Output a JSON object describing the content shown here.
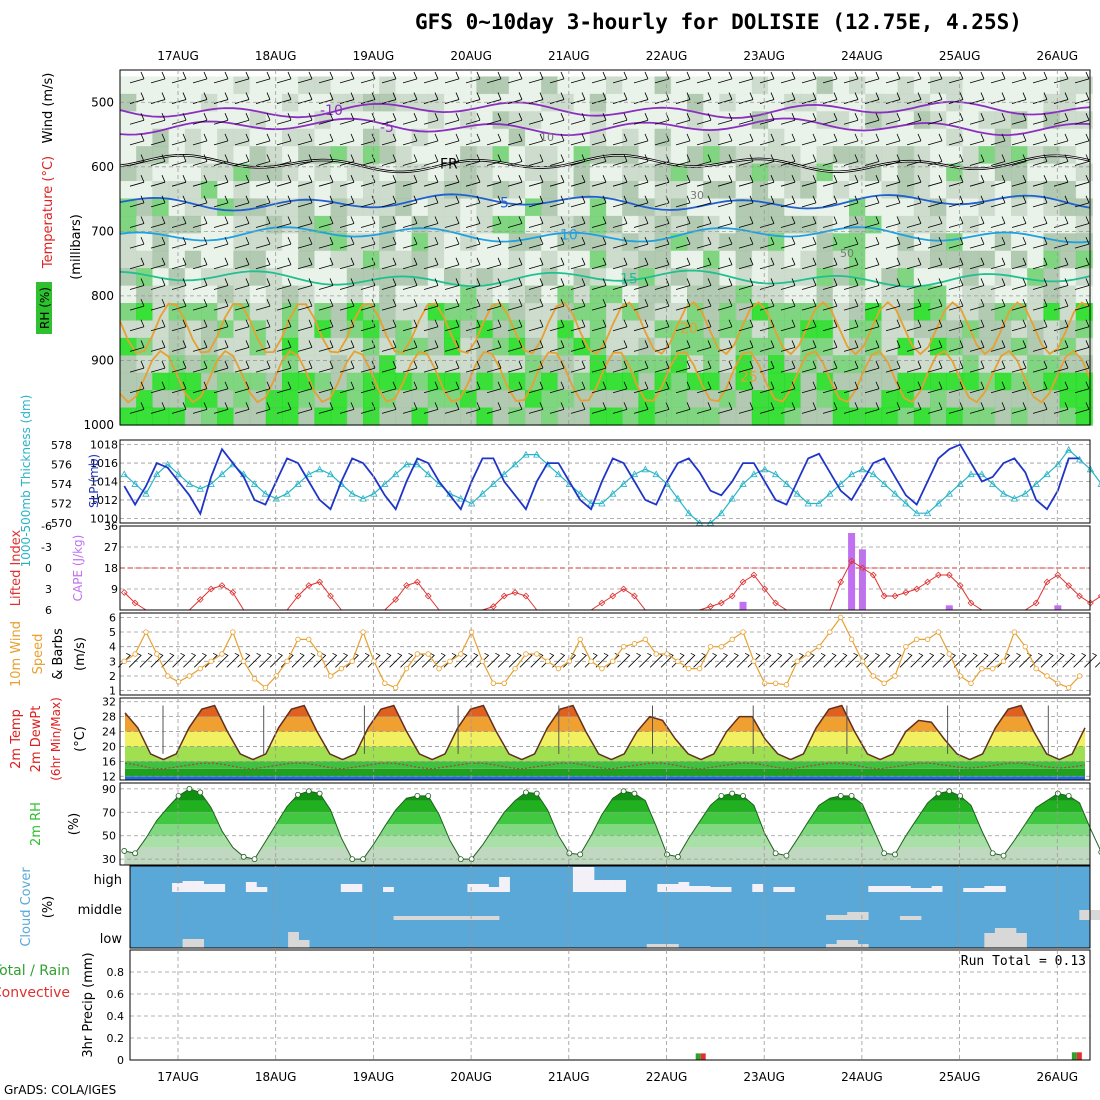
{
  "title": "GFS 0~10day 3-hourly for DOLISIE (12.75E, 4.25S)",
  "footer": "GrADS: COLA/IGES",
  "dates": [
    "17AUG",
    "18AUG",
    "19AUG",
    "20AUG",
    "21AUG",
    "22AUG",
    "23AUG",
    "24AUG",
    "25AUG",
    "26AUG"
  ],
  "colors": {
    "temp": "#e02020",
    "wind": "#000000",
    "rh_green": "#2ec02e",
    "slp": "#1f35c8",
    "thick": "#28b4c8",
    "lifted": "#e03030",
    "cape": "#c070f0",
    "wind10": "#e8a030",
    "cloud": "#5aa8d8",
    "precip_rain": "#30a030",
    "precip_conv": "#e03030"
  },
  "chart_data": [
    {
      "id": "cross_section",
      "type": "heatmap",
      "ylabel_parts": [
        "RH (%)",
        "Temperature (°C)",
        "Wind (m/s)"
      ],
      "yunit": "(millibars)",
      "y_ticks": [
        "500",
        "600",
        "700",
        "800",
        "900",
        "1000"
      ],
      "ylim": [
        1000,
        450
      ],
      "rh_contours": [
        "10",
        "30",
        "50"
      ],
      "temp_contours": [
        {
          "label": "-10",
          "level": 512
        },
        {
          "label": "-5",
          "level": 538
        },
        {
          "label": "FR",
          "level": 595
        },
        {
          "label": "5",
          "level": 655
        },
        {
          "label": "10",
          "level": 705
        },
        {
          "label": "15",
          "level": 773
        },
        {
          "label": "20",
          "level": 850
        },
        {
          "label": "25",
          "level": 925
        }
      ]
    },
    {
      "id": "slp_thickness",
      "type": "line",
      "ylabel_left": "1000-500mb Thickness (dm)",
      "ylabel_right": "SLP (mb)",
      "thickness_ticks": [
        "570",
        "572",
        "574",
        "576",
        "578"
      ],
      "thickness_range": [
        570,
        578.5
      ],
      "slp_ticks": [
        "1010",
        "1012",
        "1014",
        "1016",
        "1018"
      ],
      "slp_range": [
        1009.5,
        1018.5
      ],
      "slp": [
        1013.5,
        1011.5,
        1013.5,
        1016,
        1015.5,
        1014,
        1012.5,
        1010.5,
        1014.5,
        1017.5,
        1016,
        1014.5,
        1012,
        1011.5,
        1014,
        1016.5,
        1016,
        1014,
        1012,
        1011,
        1014,
        1016.5,
        1016,
        1014.5,
        1012.5,
        1011,
        1014,
        1016.5,
        1016,
        1014,
        1012.5,
        1011,
        1014,
        1016.5,
        1016.5,
        1014,
        1012.5,
        1011,
        1014,
        1016,
        1016,
        1014,
        1012,
        1011,
        1014,
        1016.5,
        1016,
        1014,
        1012,
        1011.5,
        1014,
        1016,
        1016.5,
        1015,
        1013,
        1012.5,
        1014,
        1016,
        1016,
        1014,
        1012,
        1011.5,
        1014,
        1016.5,
        1017,
        1015,
        1013,
        1012,
        1014,
        1016,
        1016.5,
        1014.5,
        1012.5,
        1011.5,
        1014,
        1016.5,
        1017.5,
        1018,
        1016,
        1014,
        1014.5,
        1016,
        1016.5,
        1015,
        1012,
        1011,
        1013,
        1016.5,
        1016.5
      ],
      "thickness": [
        575,
        574,
        573,
        575,
        576,
        575,
        574,
        573.5,
        574,
        575,
        576,
        575,
        574,
        573,
        572.5,
        573,
        574,
        575,
        575.5,
        575,
        574,
        573,
        572.5,
        573,
        574,
        575,
        576,
        576,
        575,
        574,
        573,
        572.5,
        572,
        573,
        574,
        575,
        576,
        577,
        577,
        576,
        575,
        574,
        573,
        572,
        572,
        573,
        574,
        575,
        575.5,
        575,
        574,
        572.5,
        571,
        570,
        570,
        571,
        572.5,
        574,
        575,
        575.5,
        575,
        574,
        573,
        572,
        572,
        573,
        574,
        575,
        575.5,
        575,
        574,
        573,
        572,
        571,
        571,
        572,
        573,
        574,
        575,
        575,
        574,
        573,
        572.5,
        573,
        574,
        575,
        576,
        577.5,
        576.5,
        575.5,
        574,
        573.5,
        573
      ]
    },
    {
      "id": "lifted_cape",
      "type": "bar",
      "ylabel_left": "Lifted Index",
      "ylabel_right": "CAPE (J/kg)",
      "li_ticks": [
        "-6",
        "-3",
        "0",
        "3",
        "6"
      ],
      "li_range": [
        6,
        -6
      ],
      "cape_ticks": [
        "9",
        "18",
        "27",
        "36"
      ],
      "cape_range": [
        0,
        36
      ],
      "lifted_index": [
        3.5,
        5,
        6,
        6,
        6,
        6,
        6,
        4.5,
        3,
        2.5,
        3.5,
        6,
        6,
        6,
        6,
        6,
        4,
        2.5,
        2,
        4,
        6,
        6,
        6,
        6,
        6,
        4.5,
        2.5,
        2,
        4,
        6,
        6,
        6,
        6,
        6,
        5.5,
        4,
        3.5,
        4,
        6,
        6,
        6,
        6,
        6,
        6,
        5,
        4,
        3,
        4,
        6,
        6,
        6,
        6,
        6,
        6,
        5.5,
        5,
        4,
        2,
        1,
        3,
        5,
        6,
        6,
        6,
        6,
        6,
        2,
        -1,
        0,
        1,
        4,
        4,
        3.5,
        3,
        2,
        1,
        1,
        2.5,
        5,
        6,
        6,
        6,
        6,
        6,
        5,
        2,
        1,
        2.5,
        4,
        5,
        4,
        3
      ],
      "cape": [
        0,
        0,
        0,
        0,
        0,
        0,
        0,
        0,
        0,
        0,
        0,
        0,
        0,
        0,
        0,
        0,
        0,
        0,
        0,
        0,
        0,
        0,
        0,
        0,
        0,
        0,
        0,
        0,
        0,
        0,
        0,
        0,
        0,
        0,
        0,
        0,
        0,
        0,
        0,
        0,
        0,
        0,
        0,
        0,
        0,
        0,
        0,
        0,
        0,
        0,
        0,
        0,
        0,
        0,
        0,
        0,
        0,
        3.5,
        0,
        0,
        0,
        0,
        0,
        0,
        0,
        0,
        0,
        33,
        26,
        0,
        0,
        0,
        0,
        0,
        0,
        0,
        2,
        0,
        0,
        0,
        0,
        0,
        0,
        0,
        0,
        0,
        2,
        0,
        0,
        0,
        0
      ]
    },
    {
      "id": "wind10m",
      "type": "line",
      "ylabel": "10m Wind Speed & Barbs (m/s)",
      "y_ticks": [
        "1",
        "2",
        "3",
        "4",
        "5",
        "6"
      ],
      "ylim": [
        1,
        6
      ],
      "speed": [
        3,
        3.5,
        5,
        3.5,
        2,
        1.6,
        2,
        2.5,
        3,
        3.5,
        5,
        3,
        1.8,
        1.2,
        2,
        3,
        4.5,
        4.5,
        3.5,
        2,
        2.5,
        3,
        5,
        3,
        1.5,
        1.2,
        2.5,
        3.5,
        3.5,
        2.5,
        3,
        3.5,
        5,
        3,
        1.5,
        1.5,
        2.5,
        3.5,
        3.5,
        3,
        2.5,
        3,
        4.5,
        3,
        2.5,
        3,
        4,
        4.2,
        4.5,
        3.5,
        3.5,
        3,
        2.5,
        2.5,
        4,
        4,
        4.5,
        5,
        3,
        1.5,
        1.5,
        1.4,
        3,
        3.5,
        4,
        5,
        6,
        4.5,
        3,
        2,
        1.5,
        2,
        4,
        4.5,
        4.5,
        5,
        3.5,
        2,
        1.5,
        2.5,
        2.5,
        3,
        5,
        4,
        2.5,
        2,
        1.5,
        1.2,
        2
      ]
    },
    {
      "id": "temp2m",
      "type": "area",
      "ylabel": "2m Temp 2m DewPt (6hr Min/Max) (°C)",
      "y_ticks": [
        "12",
        "16",
        "20",
        "24",
        "28",
        "32"
      ],
      "ylim": [
        11,
        33
      ],
      "temp": [
        29,
        25,
        18,
        16.5,
        18,
        25,
        30,
        31,
        24,
        18,
        16.5,
        18,
        25,
        30,
        31,
        24,
        18,
        16.5,
        18,
        25,
        30,
        31,
        24,
        18,
        16.5,
        18,
        25,
        30,
        31,
        24,
        18,
        16.5,
        18,
        25,
        30,
        31,
        24,
        18,
        16.5,
        18,
        24,
        28,
        27,
        22,
        18,
        16.5,
        18,
        24,
        28,
        28,
        22,
        18,
        16.5,
        18,
        25,
        30,
        31,
        24,
        18,
        16.5,
        18,
        24,
        27,
        26.5,
        22,
        18,
        16.5,
        18,
        25,
        30,
        31,
        24,
        18,
        16.5,
        18,
        25
      ],
      "dewpt": [
        15.5,
        15,
        14.2,
        14,
        14.5,
        15,
        15.5,
        15.5,
        15,
        14.3,
        14,
        14.5,
        15,
        15.5,
        15.5,
        15,
        14.3,
        14,
        14.5,
        15,
        15.5,
        15.5,
        15,
        14.3,
        14,
        14.5,
        15,
        15.5,
        15.5,
        15,
        14.3,
        14,
        14.5,
        15,
        15.5,
        15.5,
        15,
        14.3,
        14,
        14.5,
        15,
        15.5,
        15.5,
        15,
        14.3,
        14,
        14.5,
        15,
        15.5,
        15.5,
        15,
        14.3,
        14,
        14.5,
        15,
        15.5,
        15.5,
        15,
        14.3,
        14,
        14.5,
        15,
        15.5,
        15.5,
        15,
        14.5,
        14.2,
        14.5,
        15,
        15.5,
        15.5,
        15,
        14.5,
        14.2,
        14.5,
        15
      ],
      "band_levels": [
        12,
        14,
        16,
        20,
        24,
        28,
        32
      ]
    },
    {
      "id": "rh2m",
      "type": "area",
      "ylabel": "2m RH (%)",
      "y_ticks": [
        "30",
        "50",
        "70",
        "90"
      ],
      "ylim": [
        25,
        95
      ],
      "rh": [
        37,
        35,
        48,
        63,
        74,
        84,
        90,
        87,
        74,
        54,
        40,
        32,
        30,
        45,
        60,
        75,
        85,
        88,
        86,
        72,
        48,
        30,
        30,
        43,
        58,
        72,
        82,
        84,
        84,
        68,
        46,
        30,
        30,
        42,
        56,
        70,
        80,
        87,
        86,
        72,
        50,
        35,
        34,
        50,
        68,
        82,
        88,
        86,
        80,
        58,
        34,
        32,
        48,
        62,
        76,
        84,
        86,
        84,
        76,
        52,
        35,
        33,
        47,
        62,
        76,
        82,
        84,
        84,
        77,
        56,
        35,
        34,
        50,
        64,
        78,
        86,
        88,
        84,
        76,
        54,
        35,
        33,
        46,
        60,
        74,
        80,
        86,
        84,
        78,
        56,
        36,
        33,
        46,
        60,
        74,
        82,
        84
      ]
    },
    {
      "id": "cloud",
      "type": "bar",
      "ylabel": "Cloud Cover (%)",
      "layers": [
        "high",
        "middle",
        "low"
      ],
      "high": [
        0,
        0,
        0,
        0,
        9,
        11,
        11,
        8,
        8,
        0,
        0,
        10,
        5,
        0,
        0,
        0,
        0,
        0,
        0,
        0,
        8,
        8,
        0,
        0,
        5,
        0,
        0,
        0,
        0,
        0,
        0,
        0,
        8,
        8,
        5,
        15,
        0,
        0,
        0,
        0,
        0,
        0,
        25,
        25,
        12,
        12,
        12,
        0,
        0,
        0,
        8,
        8,
        10,
        6,
        6,
        5,
        5,
        0,
        0,
        8,
        0,
        5,
        5,
        0,
        0,
        0,
        0,
        0,
        0,
        0,
        6,
        6,
        6,
        6,
        4,
        4,
        6,
        0,
        0,
        4,
        4,
        6,
        6,
        0,
        0,
        0,
        0,
        0,
        0,
        0,
        0
      ],
      "middle": [
        0,
        0,
        0,
        0,
        0,
        0,
        0,
        0,
        0,
        0,
        0,
        0,
        0,
        0,
        0,
        0,
        0,
        0,
        0,
        0,
        0,
        0,
        0,
        0,
        0,
        4,
        4,
        4,
        4,
        4,
        4,
        4,
        4,
        4,
        4,
        0,
        0,
        0,
        0,
        0,
        0,
        0,
        0,
        0,
        0,
        0,
        0,
        0,
        0,
        0,
        0,
        0,
        0,
        0,
        0,
        0,
        0,
        0,
        0,
        0,
        0,
        0,
        0,
        0,
        0,
        0,
        5,
        5,
        8,
        8,
        0,
        0,
        0,
        4,
        4,
        0,
        0,
        0,
        0,
        0,
        0,
        0,
        0,
        0,
        0,
        0,
        0,
        0,
        0,
        0,
        10,
        10
      ],
      "low": [
        0,
        0,
        0,
        0,
        0,
        9,
        9,
        0,
        0,
        0,
        0,
        0,
        0,
        0,
        0,
        16,
        8,
        0,
        0,
        0,
        0,
        0,
        0,
        0,
        0,
        0,
        0,
        0,
        0,
        0,
        0,
        0,
        0,
        0,
        0,
        0,
        0,
        0,
        0,
        0,
        0,
        0,
        0,
        0,
        0,
        0,
        0,
        0,
        0,
        4,
        4,
        4,
        0,
        0,
        0,
        0,
        0,
        0,
        0,
        0,
        0,
        0,
        0,
        0,
        0,
        0,
        4,
        8,
        8,
        4,
        0,
        0,
        0,
        0,
        0,
        0,
        0,
        0,
        0,
        0,
        0,
        15,
        20,
        20,
        15,
        0,
        0,
        0,
        0,
        0,
        0,
        0
      ]
    },
    {
      "id": "precip",
      "type": "bar",
      "ylabel": "Total / Rain Convective 3hr Precip (mm)",
      "run_total": "Run Total = 0.13",
      "y_ticks": [
        "0",
        "0.2",
        "0.4",
        "0.6",
        "0.8"
      ],
      "ylim": [
        0,
        1
      ],
      "events": [
        {
          "date_index": 5.35,
          "rain": 0.06,
          "conv": 0.06
        },
        {
          "date_index": 9.2,
          "rain": 0.07,
          "conv": 0.07
        }
      ]
    }
  ]
}
